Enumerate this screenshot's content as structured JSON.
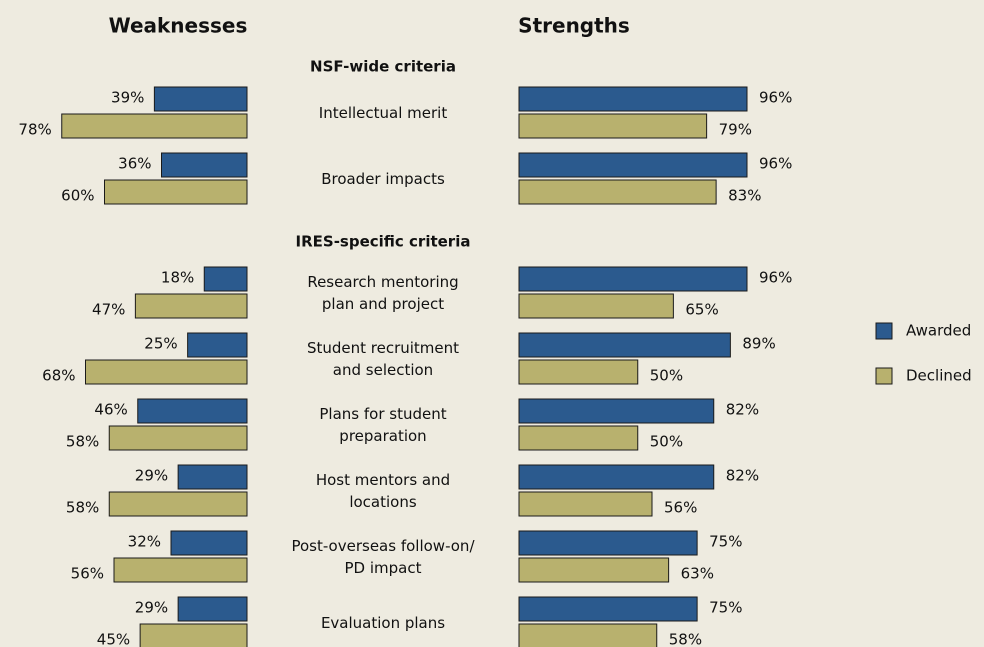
{
  "chart_data": [
    {
      "type": "bar",
      "title": "Weaknesses",
      "series": [
        {
          "color": "#2b5a8e",
          "values": [
            39,
            36,
            18,
            25,
            46,
            29,
            32,
            29
          ],
          "value_labels": [
            "39%",
            "36%",
            "18%",
            "25%",
            "46%",
            "29%",
            "32%",
            "29%"
          ]
        },
        {
          "color": "#b8b16e",
          "values": [
            78,
            60,
            47,
            68,
            58,
            58,
            56,
            45
          ],
          "value_labels": [
            "78%",
            "60%",
            "47%",
            "68%",
            "58%",
            "58%",
            "56%",
            "45%"
          ]
        }
      ]
    },
    {
      "type": "bar",
      "title": "Strengths",
      "groups": [
        {
          "title": "NSF-wide criteria",
          "categories": [
            "Intellectual merit",
            "Broader impacts"
          ]
        },
        {
          "title": "IRES-specific criteria",
          "categories": [
            "Research mentoring\nplan and project",
            "Student recruitment\nand selection",
            "Plans for student\npreparation",
            "Host mentors and\nlocations",
            "Post-overseas follow-on/\nPD impact",
            "Evaluation plans"
          ]
        }
      ],
      "series": [
        {
          "name": "Awarded",
          "color": "#2b5a8e",
          "values": [
            96,
            96,
            96,
            89,
            82,
            82,
            75,
            75
          ],
          "value_labels": [
            "96%",
            "96%",
            "96%",
            "89%",
            "82%",
            "82%",
            "75%",
            "75%"
          ]
        },
        {
          "name": "Declined",
          "color": "#b8b16e",
          "values": [
            79,
            83,
            65,
            50,
            50,
            56,
            63,
            58
          ],
          "value_labels": [
            "79%",
            "83%",
            "65%",
            "50%",
            "50%",
            "56%",
            "63%",
            "58%"
          ]
        }
      ],
      "legend": "right"
    }
  ]
}
